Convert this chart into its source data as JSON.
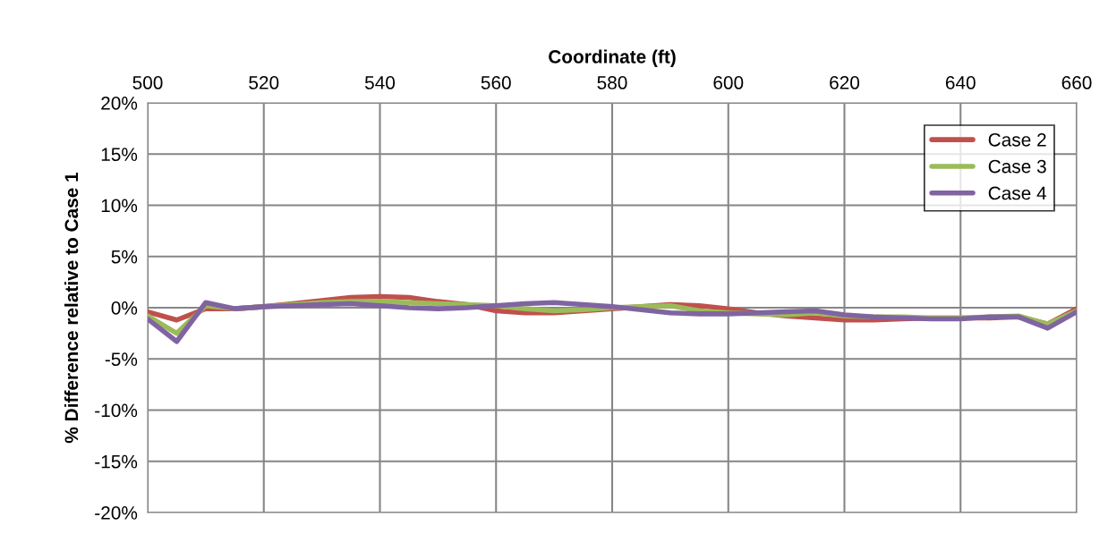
{
  "chart_data": {
    "type": "line",
    "xlabel": "Coordinate (ft)",
    "ylabel": "% Difference relative to Case 1",
    "x": [
      500,
      505,
      510,
      515,
      520,
      525,
      530,
      535,
      540,
      545,
      550,
      555,
      560,
      565,
      570,
      575,
      580,
      585,
      590,
      595,
      600,
      605,
      610,
      615,
      620,
      625,
      630,
      635,
      640,
      645,
      650,
      655,
      660
    ],
    "series": [
      {
        "name": "Case 2",
        "color": "#c0504d",
        "values": [
          -0.4,
          -1.2,
          -0.1,
          -0.1,
          0.1,
          0.4,
          0.7,
          1.0,
          1.1,
          1.0,
          0.6,
          0.3,
          -0.3,
          -0.5,
          -0.5,
          -0.3,
          -0.1,
          0.1,
          0.3,
          0.2,
          -0.1,
          -0.5,
          -0.8,
          -1.0,
          -1.2,
          -1.2,
          -1.1,
          -1.0,
          -1.0,
          -1.0,
          -0.9,
          -1.6,
          -0.1
        ]
      },
      {
        "name": "Case 3",
        "color": "#9bbb59",
        "values": [
          -0.8,
          -2.5,
          0.2,
          -0.1,
          0.1,
          0.3,
          0.5,
          0.6,
          0.6,
          0.5,
          0.4,
          0.3,
          0.2,
          -0.1,
          -0.3,
          -0.2,
          0.0,
          0.1,
          0.2,
          -0.3,
          -0.5,
          -0.6,
          -0.7,
          -0.5,
          -0.8,
          -0.9,
          -0.9,
          -1.0,
          -1.0,
          -0.9,
          -0.8,
          -1.6,
          -0.3
        ]
      },
      {
        "name": "Case 4",
        "color": "#8064a2",
        "values": [
          -1.1,
          -3.3,
          0.5,
          -0.1,
          0.1,
          0.2,
          0.3,
          0.4,
          0.2,
          0.0,
          -0.1,
          0.0,
          0.2,
          0.4,
          0.5,
          0.3,
          0.1,
          -0.2,
          -0.5,
          -0.6,
          -0.6,
          -0.5,
          -0.4,
          -0.3,
          -0.7,
          -0.9,
          -1.0,
          -1.1,
          -1.1,
          -0.9,
          -0.9,
          -2.0,
          -0.4
        ]
      }
    ],
    "xlim": [
      500,
      660
    ],
    "xticks": [
      500,
      520,
      540,
      560,
      580,
      600,
      620,
      640,
      660
    ],
    "ylim": [
      -20,
      20
    ],
    "yticks": [
      {
        "value": -20,
        "label": "-20%"
      },
      {
        "value": -15,
        "label": "-15%"
      },
      {
        "value": -10,
        "label": "-10%"
      },
      {
        "value": -5,
        "label": "-5%"
      },
      {
        "value": 0,
        "label": "0%"
      },
      {
        "value": 5,
        "label": "5%"
      },
      {
        "value": 10,
        "label": "10%"
      },
      {
        "value": 15,
        "label": "15%"
      },
      {
        "value": 20,
        "label": "20%"
      }
    ],
    "grid": true,
    "legend": "top right",
    "marker": "none",
    "line_style": "solid"
  }
}
